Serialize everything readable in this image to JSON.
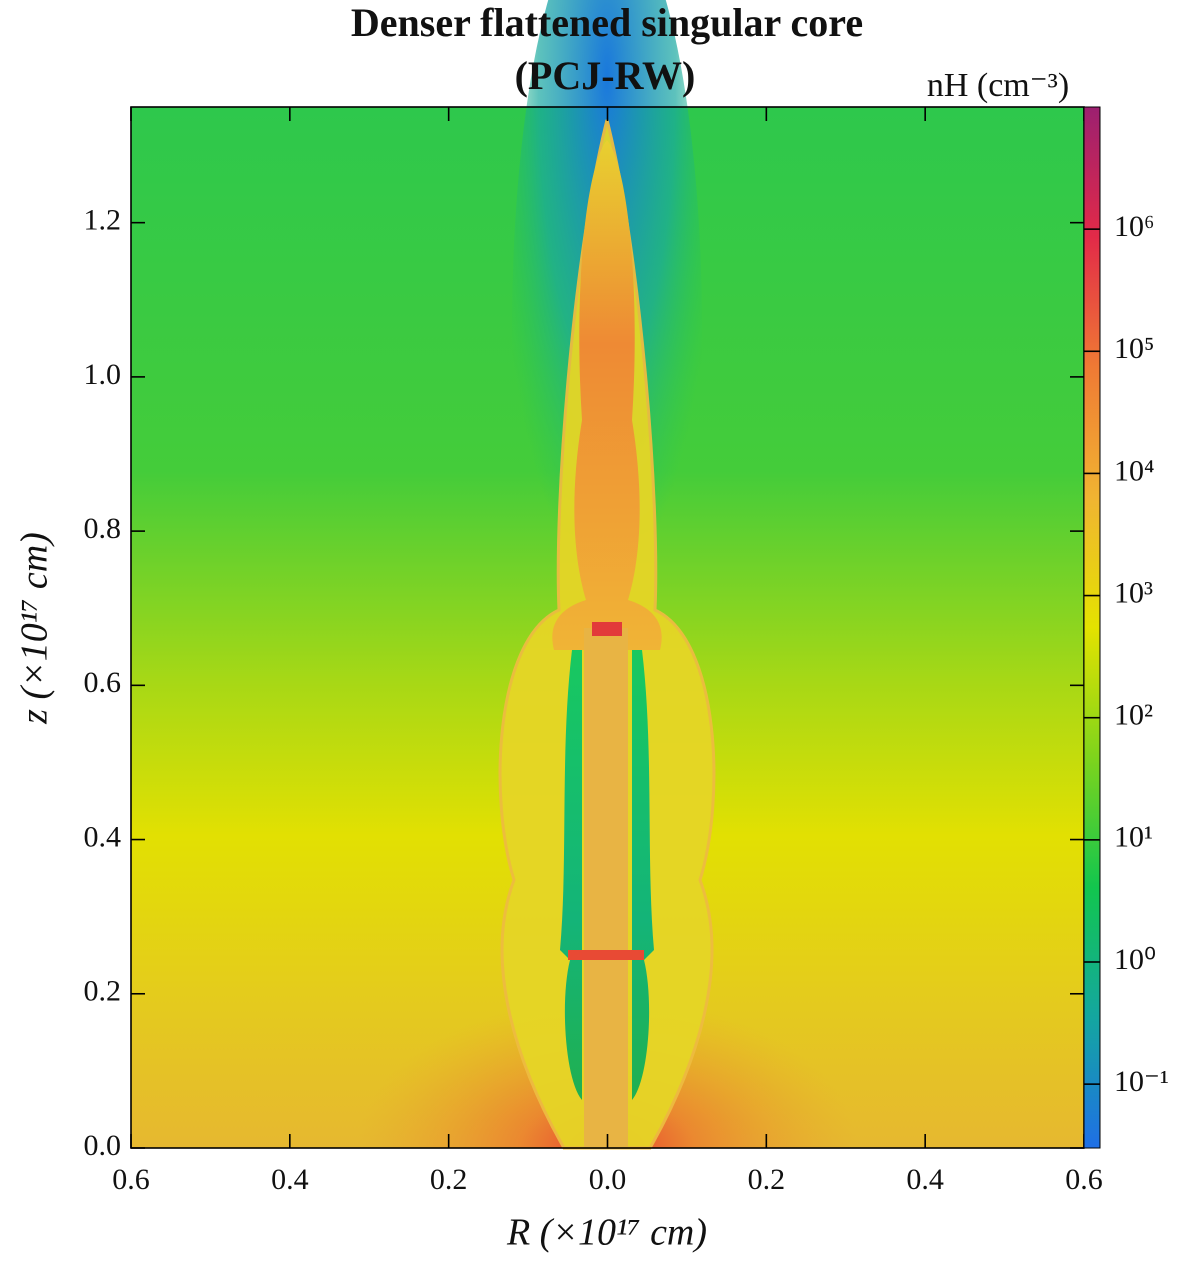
{
  "chart_data": {
    "type": "heatmap",
    "title": "Denser flattened singular core",
    "subtitle": "(PCJ-RW)",
    "x_label": "R (×10¹⁷ cm)",
    "y_label": "z (×10¹⁷ cm)",
    "colorbar_label": "nH (cm⁻³)",
    "xlim": [
      -0.6,
      0.6
    ],
    "xticks": [
      {
        "value": -0.6,
        "label": "0.6"
      },
      {
        "value": -0.4,
        "label": "0.4"
      },
      {
        "value": -0.2,
        "label": "0.2"
      },
      {
        "value": 0,
        "label": "0.0"
      },
      0.2,
      0.4,
      0.6
    ],
    "ylim": [
      0,
      1.35
    ],
    "yticks": [
      {
        "value": 0,
        "label": "0.0"
      },
      0.2,
      0.4,
      0.6,
      0.8,
      {
        "value": 1,
        "label": "1.0"
      },
      1.2
    ],
    "color_scale": "log",
    "colorlim": [
      0.03,
      10000000
    ],
    "cticks": [
      {
        "value": 0.1,
        "label": "10⁻¹"
      },
      {
        "value": 1,
        "label": "10⁰"
      },
      {
        "value": 10,
        "label": "10¹"
      },
      {
        "value": 100,
        "label": "10²"
      },
      {
        "value": 1000,
        "label": "10³"
      },
      {
        "value": 10000,
        "label": "10⁴"
      },
      {
        "value": 100000,
        "label": "10⁵"
      },
      {
        "value": 1000000,
        "label": "10⁶"
      }
    ],
    "colormap": [
      "#1f6fe6",
      "#14a6a0",
      "#12c64e",
      "#7ed41c",
      "#e4e200",
      "#f0b432",
      "#ef7a34",
      "#e22a48",
      "#9c2070"
    ]
  }
}
